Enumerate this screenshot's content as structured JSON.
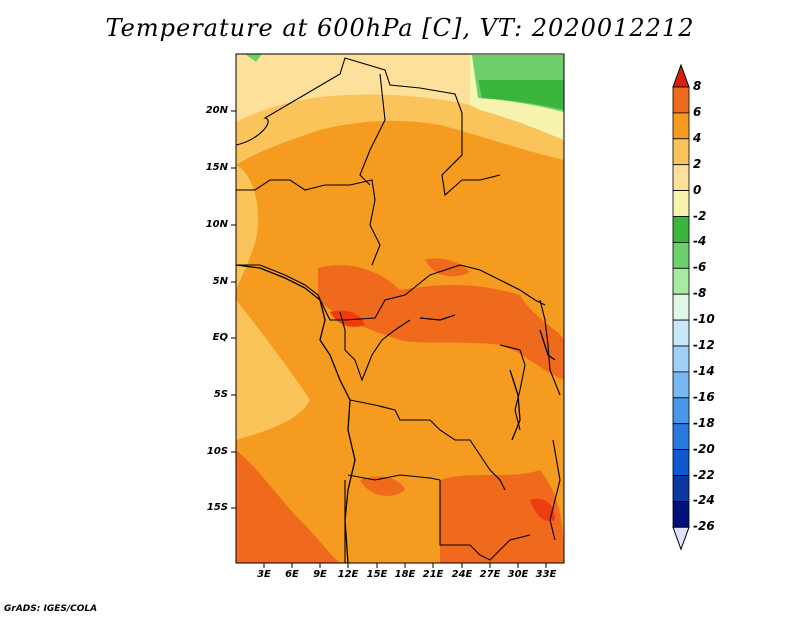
{
  "title": "Temperature at 600hPa [C], VT: 2020012212",
  "credit": "GrADS: IGES/COLA",
  "map": {
    "lat_labels": [
      "20N",
      "15N",
      "10N",
      "5N",
      "EQ",
      "5S",
      "10S",
      "15S"
    ],
    "lon_labels": [
      "3E",
      "6E",
      "9E",
      "12E",
      "15E",
      "18E",
      "21E",
      "24E",
      "27E",
      "30E",
      "33E"
    ]
  },
  "colorbar": {
    "labels": [
      "8",
      "6",
      "4",
      "2",
      "0",
      "-2",
      "-4",
      "-6",
      "-8",
      "-10",
      "-12",
      "-14",
      "-16",
      "-18",
      "-20",
      "-22",
      "-24",
      "-26"
    ],
    "colors": [
      "#f03a10",
      "#f06a1e",
      "#f59b20",
      "#fbc45a",
      "#fde19a",
      "#f7f4b0",
      "#3cb53c",
      "#6ed06c",
      "#a6eba0",
      "#e0f8e8",
      "#c8e8f8",
      "#a0d0f8",
      "#78b8f0",
      "#4898e8",
      "#2878e0",
      "#1058d0",
      "#0838a0",
      "#00107a"
    ],
    "top_arrow_color": "#d8200a",
    "bottom_arrow_color": "#e0e0ff"
  }
}
